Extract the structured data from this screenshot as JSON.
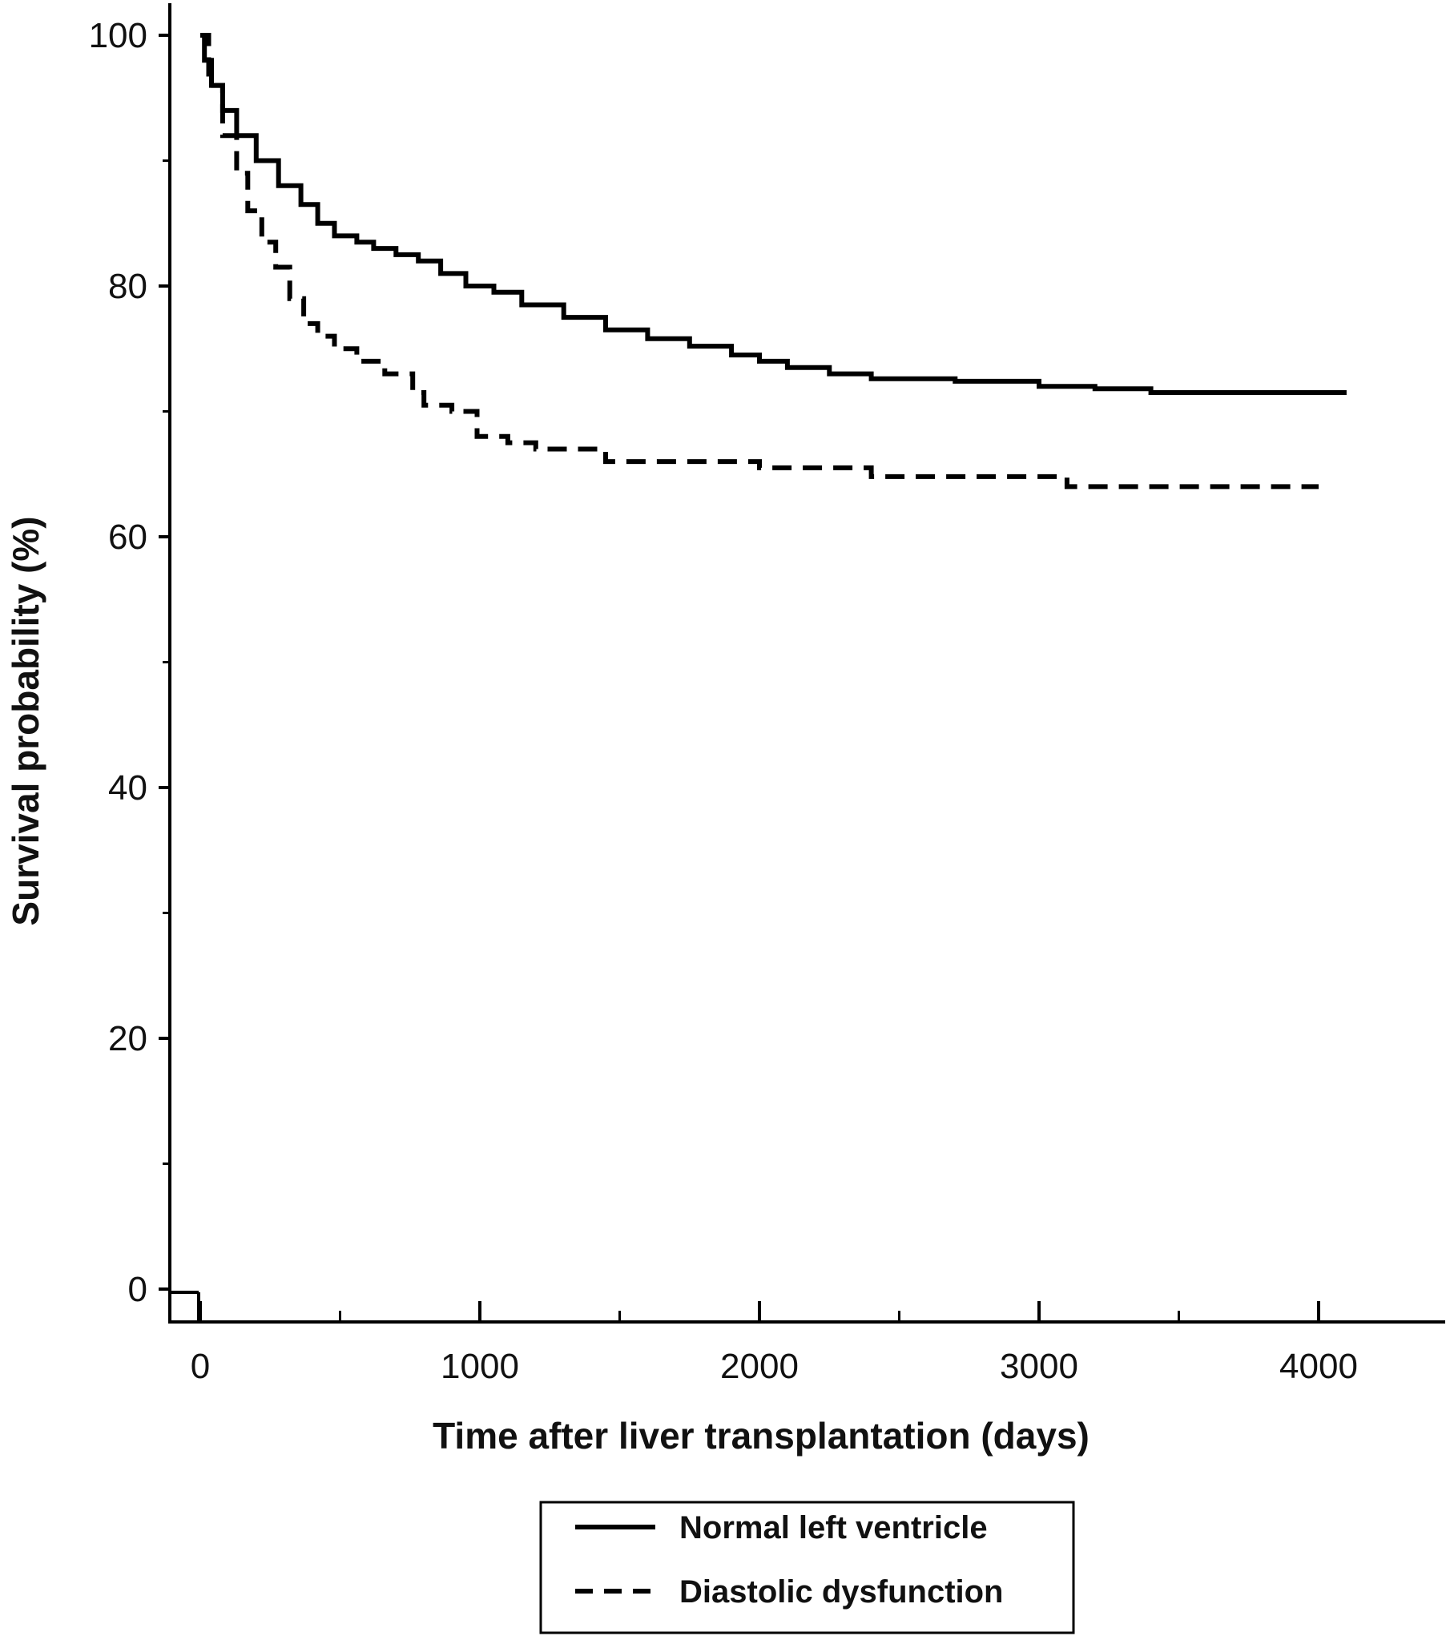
{
  "chart_data": {
    "type": "line",
    "xlabel": "Time after liver transplantation (days)",
    "ylabel": "Survival probability (%)",
    "xlim": [
      -100,
      4400
    ],
    "ylim": [
      -3,
      103
    ],
    "xticks_major": [
      0,
      1000,
      2000,
      3000,
      4000
    ],
    "xticks_minor": [
      500,
      1500,
      2500,
      3500
    ],
    "yticks_major": [
      0,
      20,
      40,
      60,
      80,
      100
    ],
    "yticks_minor": [
      10,
      30,
      50,
      70,
      90
    ],
    "legend_position": "bottom-center",
    "series": [
      {
        "name": "Normal left ventricle",
        "style": "solid",
        "color": "#000000",
        "points": [
          [
            0,
            100
          ],
          [
            15,
            98
          ],
          [
            40,
            96
          ],
          [
            80,
            94
          ],
          [
            130,
            92
          ],
          [
            200,
            90
          ],
          [
            280,
            88
          ],
          [
            360,
            86.5
          ],
          [
            420,
            85
          ],
          [
            480,
            84
          ],
          [
            560,
            83.5
          ],
          [
            620,
            83
          ],
          [
            700,
            82.5
          ],
          [
            780,
            82
          ],
          [
            860,
            81
          ],
          [
            950,
            80
          ],
          [
            1050,
            79.5
          ],
          [
            1150,
            78.5
          ],
          [
            1300,
            77.5
          ],
          [
            1450,
            76.5
          ],
          [
            1600,
            75.8
          ],
          [
            1750,
            75.2
          ],
          [
            1900,
            74.5
          ],
          [
            2000,
            74
          ],
          [
            2100,
            73.5
          ],
          [
            2250,
            73
          ],
          [
            2400,
            72.6
          ],
          [
            2700,
            72.4
          ],
          [
            3000,
            72
          ],
          [
            3200,
            71.8
          ],
          [
            3400,
            71.5
          ],
          [
            4100,
            71.5
          ]
        ]
      },
      {
        "name": "Diastolic dysfunction",
        "style": "dashed",
        "color": "#000000",
        "points": [
          [
            0,
            100
          ],
          [
            30,
            96
          ],
          [
            80,
            92
          ],
          [
            130,
            89
          ],
          [
            170,
            86
          ],
          [
            220,
            83.5
          ],
          [
            270,
            81.5
          ],
          [
            320,
            79
          ],
          [
            370,
            77
          ],
          [
            420,
            76
          ],
          [
            480,
            75
          ],
          [
            560,
            74
          ],
          [
            660,
            73
          ],
          [
            760,
            71.5
          ],
          [
            800,
            70.5
          ],
          [
            900,
            70
          ],
          [
            990,
            68
          ],
          [
            1100,
            67.5
          ],
          [
            1200,
            67
          ],
          [
            1450,
            66
          ],
          [
            1980,
            66
          ],
          [
            2000,
            65.5
          ],
          [
            2400,
            64.8
          ],
          [
            3100,
            64
          ],
          [
            4000,
            64
          ]
        ]
      }
    ]
  }
}
